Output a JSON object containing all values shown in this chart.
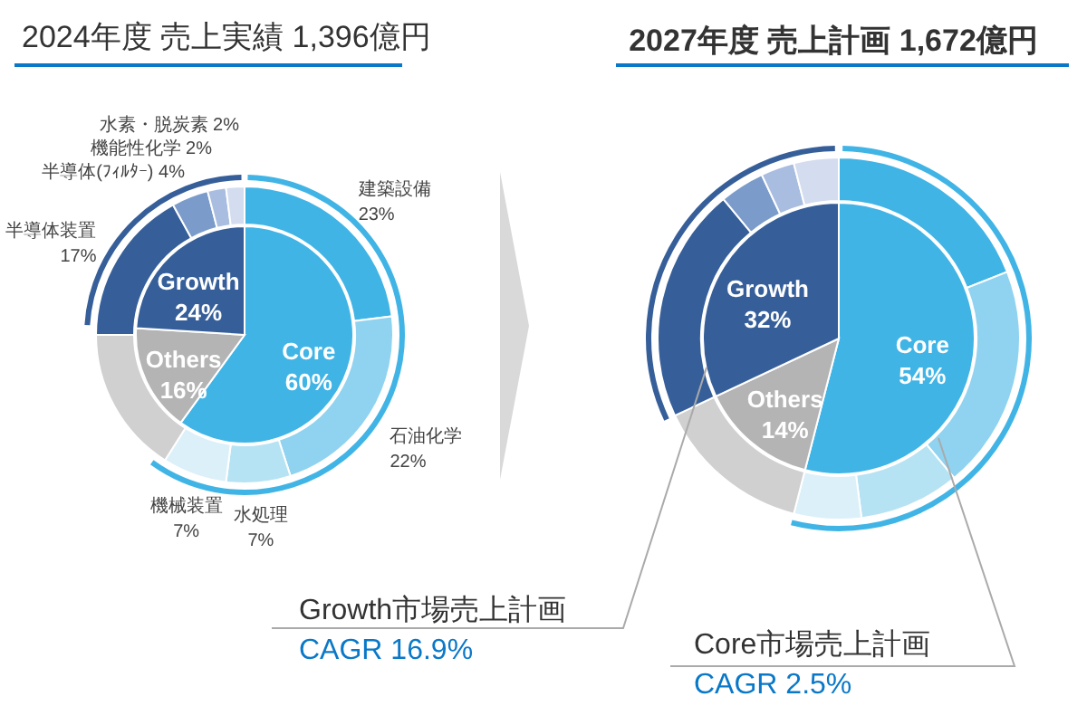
{
  "chart_data": [
    {
      "type": "pie",
      "title": "2024年度 売上実績 1,396億円",
      "categories": [
        "Core",
        "Others",
        "Growth"
      ],
      "values": [
        60,
        16,
        24
      ],
      "colors": [
        "#41b4e6",
        "#b4b4b4",
        "#365f9a"
      ],
      "value_labels": [
        "60%",
        "16%",
        "24%"
      ]
    },
    {
      "type": "donut",
      "categories": [
        "建築設備",
        "石油化学",
        "水処理",
        "機械装置",
        null,
        "半導体装置",
        "半導体(ﾌｨﾙﾀｰ)",
        "機能性化学",
        "水素・脱炭素"
      ],
      "values": [
        23,
        22,
        7,
        7,
        16,
        17,
        4,
        2,
        2
      ],
      "colors": [
        "#41b4e6",
        "#8fd3f0",
        "#b6e3f4",
        "#dcf0f9",
        "#d0d0d0",
        "#365f9a",
        "#7b9bcb",
        "#a8bde0",
        "#d3ddef"
      ],
      "value_labels": [
        "23%",
        "22%",
        "7%",
        "7%",
        null,
        "17%",
        "4%",
        "2%",
        "2%"
      ]
    },
    {
      "type": "pie",
      "title": "2027年度 売上計画 1,672億円",
      "categories": [
        "Core",
        "Others",
        "Growth"
      ],
      "values": [
        54,
        14,
        32
      ],
      "colors": [
        "#41b4e6",
        "#b4b4b4",
        "#365f9a"
      ],
      "value_labels": [
        "54%",
        "14%",
        "32%"
      ]
    },
    {
      "type": "donut",
      "categories": [
        null,
        null,
        null,
        null,
        null,
        null,
        null,
        null,
        null
      ],
      "values": [
        19,
        20,
        9,
        6,
        14,
        21,
        4,
        3,
        4
      ],
      "colors": [
        "#41b4e6",
        "#8fd3f0",
        "#b6e3f4",
        "#dcf0f9",
        "#d0d0d0",
        "#365f9a",
        "#7b9bcb",
        "#a8bde0",
        "#d3ddef"
      ],
      "annotations": [
        "Growth市場売上計画",
        "CAGR 16.9%",
        "Core市場売上計画",
        "CAGR 2.5%"
      ]
    }
  ]
}
